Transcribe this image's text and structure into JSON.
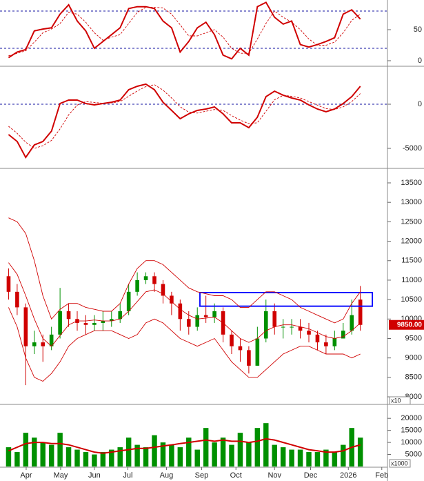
{
  "chart_data": [
    {
      "type": "line",
      "x": [
        0,
        1,
        2,
        3,
        4,
        5,
        6,
        7,
        8,
        9,
        10,
        11,
        12,
        13,
        14,
        15,
        16,
        17,
        18,
        19,
        20,
        21,
        22,
        23,
        24,
        25,
        26,
        27,
        28,
        29,
        30,
        31,
        32,
        33,
        34,
        35,
        36,
        37,
        38,
        39,
        40,
        41
      ],
      "xlim": [
        -1,
        44
      ],
      "ylim": [
        -7.8,
        97.8
      ],
      "yticks": [
        0,
        50
      ],
      "levels": [
        20,
        80
      ],
      "level_color": "#1010a0",
      "series": [
        {
          "color": "#d00000",
          "values": [
            5,
            14,
            18,
            48,
            51,
            53,
            75,
            90,
            64,
            48,
            20,
            31,
            42,
            53,
            84,
            87,
            87,
            84,
            64,
            53,
            14,
            31,
            53,
            62,
            42,
            9,
            3,
            20,
            9,
            87,
            94,
            70,
            59,
            64,
            26,
            22,
            26,
            31,
            37,
            75,
            82,
            67
          ]
        },
        {
          "color": "#d00000",
          "dash": true,
          "values": [
            8,
            12,
            16,
            30,
            45,
            51,
            60,
            78,
            75,
            62,
            45,
            33,
            38,
            42,
            60,
            78,
            86,
            86,
            85,
            75,
            58,
            40,
            40,
            45,
            50,
            38,
            20,
            12,
            12,
            35,
            60,
            80,
            70,
            62,
            50,
            35,
            25,
            25,
            30,
            45,
            65,
            75
          ]
        }
      ]
    },
    {
      "type": "line",
      "x": [
        0,
        1,
        2,
        3,
        4,
        5,
        6,
        7,
        8,
        9,
        10,
        11,
        12,
        13,
        14,
        15,
        16,
        17,
        18,
        19,
        20,
        21,
        22,
        23,
        24,
        25,
        26,
        27,
        28,
        29,
        30,
        31,
        32,
        33,
        34,
        35,
        36,
        37,
        38,
        39,
        40,
        41
      ],
      "xlim": [
        -1,
        44
      ],
      "ylim": [
        -7188,
        4219
      ],
      "yticks": [
        -5000,
        0
      ],
      "levels": [
        0
      ],
      "level_color": "#1010a0",
      "series": [
        {
          "color": "#d00000",
          "values": [
            -3440,
            -4220,
            -6020,
            -4610,
            -4220,
            -3050,
            80,
            470,
            470,
            80,
            -80,
            80,
            230,
            470,
            1640,
            2030,
            2270,
            1640,
            230,
            -700,
            -1640,
            -1090,
            -700,
            -550,
            -310,
            -1090,
            -2110,
            -2110,
            -2660,
            -1480,
            860,
            1480,
            1020,
            700,
            470,
            -80,
            -550,
            -860,
            -550,
            80,
            860,
            2030
          ]
        },
        {
          "color": "#d00000",
          "dash": true,
          "values": [
            -2500,
            -3300,
            -4300,
            -5000,
            -4700,
            -4100,
            -2800,
            -1200,
            -100,
            300,
            200,
            100,
            150,
            300,
            900,
            1500,
            2000,
            2200,
            1600,
            700,
            -300,
            -900,
            -1000,
            -800,
            -600,
            -700,
            -1300,
            -1800,
            -2200,
            -2100,
            -800,
            500,
            1000,
            900,
            700,
            300,
            -100,
            -500,
            -600,
            -300,
            300,
            1200
          ]
        }
      ]
    },
    {
      "type": "candlestick",
      "x": [
        0,
        1,
        2,
        3,
        4,
        5,
        6,
        7,
        8,
        9,
        10,
        11,
        12,
        13,
        14,
        15,
        16,
        17,
        18,
        19,
        20,
        21,
        22,
        23,
        24,
        25,
        26,
        27,
        28,
        29,
        30,
        31,
        32,
        33,
        34,
        35,
        36,
        37,
        38,
        39,
        40,
        41
      ],
      "xlim": [
        -1,
        44
      ],
      "ylim": [
        7823,
        13855
      ],
      "yticks": [
        8000,
        8500,
        9000,
        9500,
        10000,
        10500,
        11000,
        11500,
        12000,
        12500,
        13000,
        13500
      ],
      "y_unit": "x10",
      "up_color": "#009000",
      "down_color": "#d00000",
      "open": [
        11100,
        10700,
        10300,
        9300,
        9400,
        9300,
        9600,
        10200,
        10000,
        9900,
        9850,
        9900,
        9950,
        10000,
        10200,
        10700,
        11000,
        11100,
        10900,
        10600,
        10400,
        10000,
        9800,
        10100,
        10050,
        10200,
        9600,
        9300,
        9200,
        8800,
        9500,
        10200,
        9800,
        9800,
        9800,
        9700,
        9600,
        9400,
        9300,
        9500,
        9700,
        10500
      ],
      "high": [
        11300,
        10900,
        10400,
        9700,
        9600,
        9800,
        10800,
        10400,
        10200,
        10100,
        10100,
        10200,
        10200,
        10400,
        10900,
        11200,
        11200,
        11200,
        11000,
        10700,
        10500,
        10200,
        10300,
        10600,
        10400,
        10300,
        9700,
        9500,
        9300,
        9800,
        10500,
        10400,
        10000,
        10000,
        10000,
        9900,
        9700,
        9600,
        9700,
        9900,
        10500,
        10850
      ],
      "low": [
        10500,
        10100,
        8300,
        9100,
        8900,
        9200,
        9500,
        9800,
        9700,
        9600,
        9700,
        9700,
        9800,
        9900,
        10100,
        10600,
        10900,
        10700,
        10400,
        10100,
        9700,
        9600,
        9700,
        9900,
        9900,
        9400,
        9100,
        8900,
        8600,
        8800,
        9400,
        9600,
        9500,
        9600,
        9500,
        9400,
        9200,
        9100,
        9200,
        9500,
        9600,
        9700
      ],
      "close": [
        10700,
        10300,
        9300,
        9400,
        9300,
        9600,
        10200,
        10000,
        9900,
        9850,
        9900,
        9950,
        10000,
        10200,
        10700,
        11000,
        11100,
        10900,
        10600,
        10400,
        10000,
        9800,
        10100,
        10050,
        10200,
        9600,
        9300,
        9200,
        8800,
        9500,
        10200,
        9800,
        9800,
        9800,
        9700,
        9600,
        9400,
        9300,
        9500,
        9700,
        10100,
        9850
      ],
      "last_label": "9850.00",
      "last_color": "#d00000",
      "box": {
        "x": [
          22.3,
          42.4
        ],
        "y": [
          10330,
          10680
        ],
        "color": "#1010ff"
      },
      "series": [
        {
          "color": "#d00000",
          "values": [
            12600,
            12500,
            12200,
            11500,
            10600,
            10000,
            10250,
            10400,
            10400,
            10300,
            10250,
            10200,
            10200,
            10400,
            10900,
            11300,
            11500,
            11500,
            11400,
            11200,
            11000,
            10800,
            10700,
            10650,
            10600,
            10600,
            10500,
            10300,
            10300,
            10500,
            10700,
            10700,
            10600,
            10500,
            10300,
            10200,
            10100,
            10000,
            9900,
            10000,
            10400,
            10700
          ]
        },
        {
          "color": "#d00000",
          "values": [
            11450,
            11150,
            10600,
            10000,
            9500,
            9300,
            9575,
            9850,
            9950,
            9950,
            9975,
            9950,
            9950,
            10000,
            10200,
            10450,
            10700,
            10750,
            10650,
            10450,
            10250,
            10100,
            10000,
            10025,
            10050,
            9900,
            9700,
            9500,
            9400,
            9500,
            9700,
            9800,
            9850,
            9850,
            9800,
            9750,
            9650,
            9550,
            9500,
            9550,
            9700,
            9900
          ]
        },
        {
          "color": "#d00000",
          "values": [
            10300,
            9800,
            9000,
            8500,
            8400,
            8600,
            8900,
            9300,
            9500,
            9600,
            9700,
            9700,
            9700,
            9600,
            9500,
            9600,
            9900,
            10000,
            9900,
            9700,
            9500,
            9400,
            9300,
            9400,
            9500,
            9200,
            8900,
            8700,
            8500,
            8500,
            8700,
            8900,
            9100,
            9200,
            9300,
            9300,
            9200,
            9100,
            9100,
            9100,
            9000,
            9100
          ]
        }
      ]
    },
    {
      "type": "bar",
      "x": [
        0,
        1,
        2,
        3,
        4,
        5,
        6,
        7,
        8,
        9,
        10,
        11,
        12,
        13,
        14,
        15,
        16,
        17,
        18,
        19,
        20,
        21,
        22,
        23,
        24,
        25,
        26,
        27,
        28,
        29,
        30,
        31,
        32,
        33,
        34,
        35,
        36,
        37,
        38,
        39,
        40,
        41
      ],
      "xlim": [
        -1,
        44
      ],
      "ylim": [
        0,
        25500
      ],
      "yticks": [
        5000,
        10000,
        15000,
        20000
      ],
      "y_unit": "x1000",
      "xticks": [
        {
          "value": 2.05,
          "label": "Apr"
        },
        {
          "value": 6.07,
          "label": "May"
        },
        {
          "value": 10.0,
          "label": "Jun"
        },
        {
          "value": 13.9,
          "label": "Jul"
        },
        {
          "value": 18.4,
          "label": "Aug"
        },
        {
          "value": 22.5,
          "label": "Sep"
        },
        {
          "value": 26.5,
          "label": "Oct"
        },
        {
          "value": 31.0,
          "label": "Nov"
        },
        {
          "value": 35.2,
          "label": "Dec"
        },
        {
          "value": 39.6,
          "label": "2026"
        },
        {
          "value": 43.5,
          "label": "Feb"
        }
      ],
      "color": "#009000",
      "values": [
        8000,
        6000,
        14000,
        12000,
        10000,
        9000,
        14000,
        8000,
        7000,
        6000,
        5000,
        6000,
        7000,
        8000,
        12000,
        9000,
        8000,
        13000,
        10000,
        9000,
        8000,
        12000,
        7000,
        16000,
        10000,
        12000,
        9000,
        14000,
        10000,
        16000,
        18000,
        9000,
        8000,
        7000,
        7000,
        6000,
        6000,
        7000,
        6000,
        9000,
        16000,
        12000
      ],
      "series": [
        {
          "color": "#d00000",
          "values": [
            6500,
            8000,
            9500,
            10000,
            10000,
            9500,
            9500,
            9000,
            8000,
            7000,
            6000,
            5500,
            6000,
            6500,
            7000,
            7500,
            7500,
            8000,
            8500,
            9000,
            9500,
            10000,
            10500,
            11000,
            10500,
            11000,
            10500,
            10500,
            10000,
            10500,
            11500,
            11000,
            10000,
            9000,
            8000,
            7000,
            6500,
            6000,
            6000,
            6500,
            8000,
            9000
          ]
        }
      ]
    }
  ]
}
